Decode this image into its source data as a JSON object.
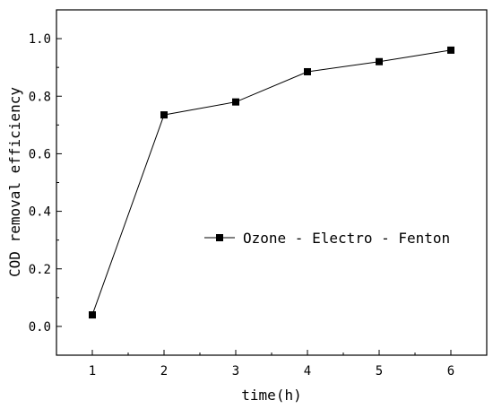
{
  "chart_data": {
    "type": "line",
    "x": [
      1,
      2,
      3,
      4,
      5,
      6
    ],
    "series": [
      {
        "name": "Ozone - Electro - Fenton",
        "values": [
          0.04,
          0.735,
          0.78,
          0.885,
          0.92,
          0.96
        ]
      }
    ],
    "xlabel": "time(h)",
    "ylabel": "COD removal efficiency",
    "xlim": [
      0.5,
      6.5
    ],
    "ylim": [
      -0.1,
      1.1
    ],
    "xticks": [
      "1",
      "2",
      "3",
      "4",
      "5",
      "6"
    ],
    "yticks": [
      "0.0",
      "0.2",
      "0.4",
      "0.6",
      "0.8",
      "1.0"
    ],
    "grid": false,
    "legend_position": "right",
    "marker": "square",
    "color": "#000000"
  }
}
